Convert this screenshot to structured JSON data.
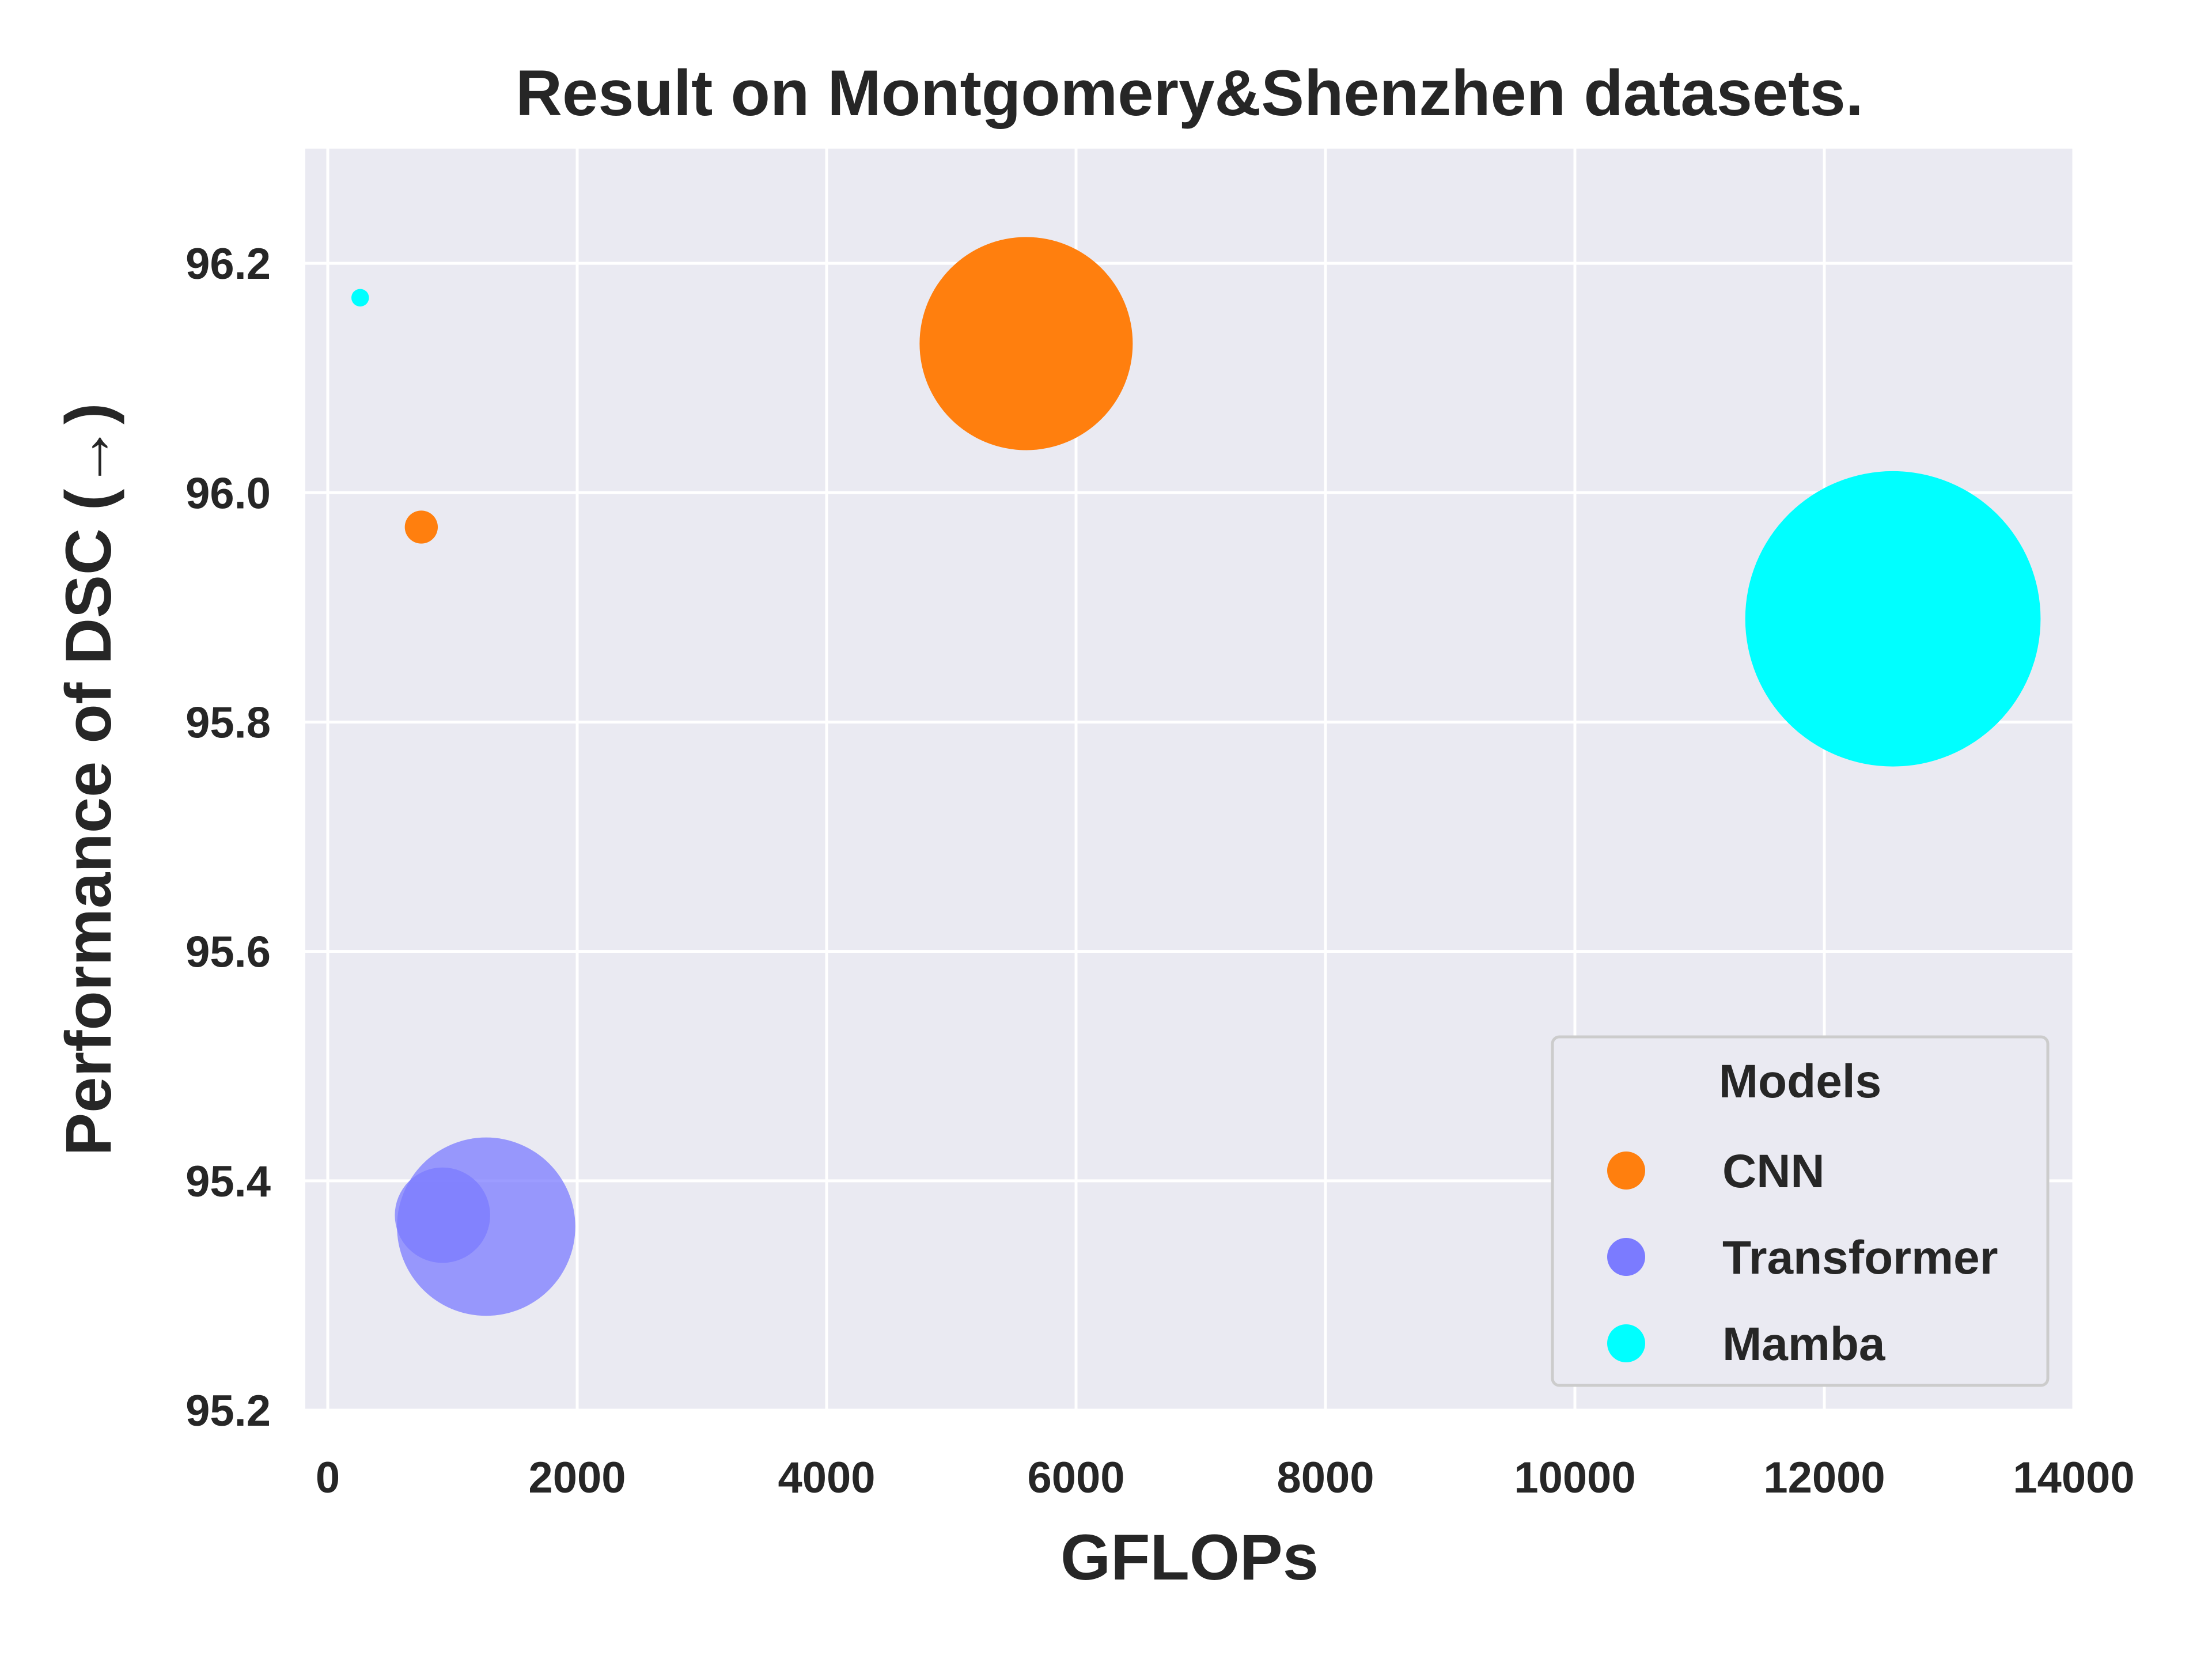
{
  "chart_data": {
    "type": "scatter",
    "title": "Result on Montgomery&Shenzhen datasets.",
    "xlabel": "GFLOPs",
    "ylabel": "Performance of DSC (→)",
    "xlim": [
      -180,
      14000
    ],
    "ylim": [
      95.2,
      96.3
    ],
    "xticks": [
      0,
      2000,
      4000,
      6000,
      8000,
      10000,
      12000,
      14000
    ],
    "yticks": [
      95.2,
      95.4,
      95.6,
      95.8,
      96.0,
      96.2
    ],
    "xtick_labels": [
      "0",
      "2000",
      "4000",
      "6000",
      "8000",
      "10000",
      "12000",
      "14000"
    ],
    "ytick_labels": [
      "95.2",
      "95.4",
      "95.6",
      "95.8",
      "96.0",
      "96.2"
    ],
    "grid": true,
    "legend": {
      "title": "Models",
      "placement": "lower-right"
    },
    "bubble_size_note": "marker area proportional to a third variable (relative size)",
    "series": [
      {
        "name": "CNN",
        "color": "#ff7f0e",
        "points": [
          {
            "x": 750,
            "y": 95.97,
            "size": 0.6
          },
          {
            "x": 5600,
            "y": 96.13,
            "size": 25
          }
        ]
      },
      {
        "name": "Transformer",
        "color": "#7b7bff",
        "points": [
          {
            "x": 1270,
            "y": 95.36,
            "size": 17.5
          },
          {
            "x": 920,
            "y": 95.37,
            "size": 5
          }
        ]
      },
      {
        "name": "Mamba",
        "color": "#00ffff",
        "points": [
          {
            "x": 260,
            "y": 96.17,
            "size": 0.17
          },
          {
            "x": 12550,
            "y": 95.89,
            "size": 48
          }
        ]
      }
    ]
  }
}
